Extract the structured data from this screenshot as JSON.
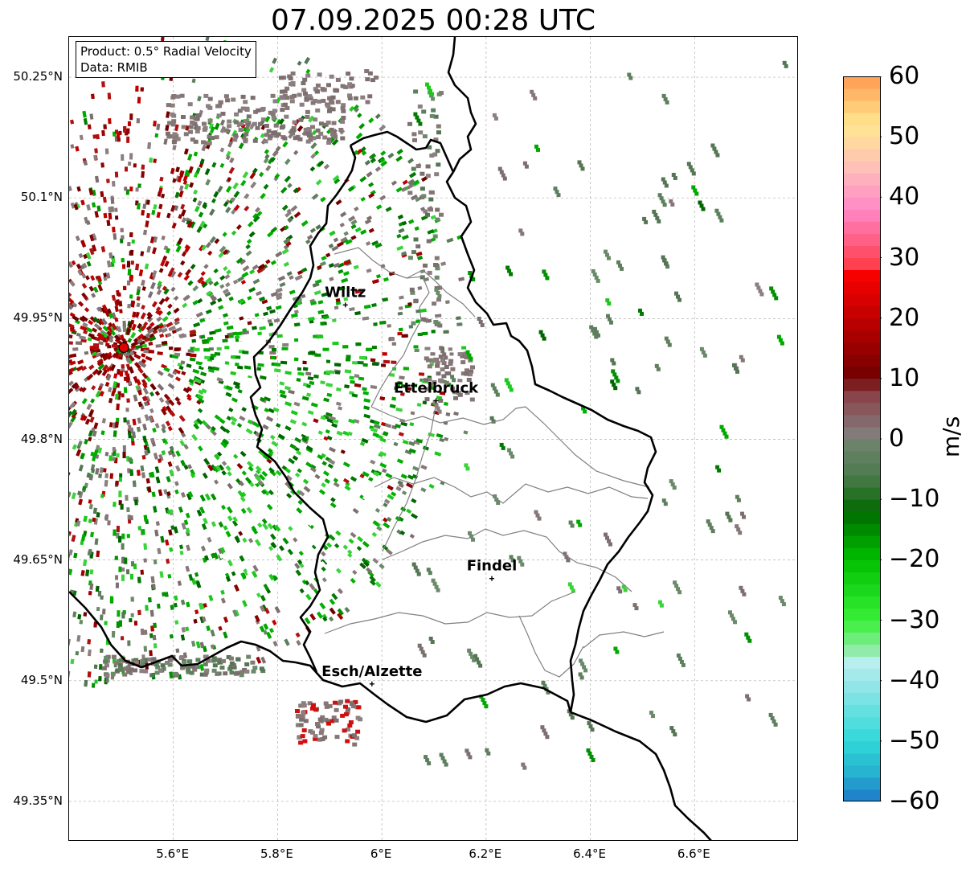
{
  "title": "07.09.2025 00:28 UTC",
  "product_box": {
    "line1": "Product: 0.5° Radial Velocity",
    "line2": "Data: RMIB"
  },
  "latitude_labels": [
    "50.25°N",
    "50.1°N",
    "49.95°N",
    "49.8°N",
    "49.65°N",
    "49.5°N",
    "49.35°N"
  ],
  "longitude_labels": [
    "5.6°E",
    "5.8°E",
    "6°E",
    "6.2°E",
    "6.4°E",
    "6.6°E"
  ],
  "cities": [
    {
      "name": "Wiltz",
      "lon": 5.93,
      "lat": 49.967
    },
    {
      "name": "Ettelbruck",
      "lon": 6.104,
      "lat": 49.848
    },
    {
      "name": "Findel",
      "lon": 6.211,
      "lat": 49.627
    },
    {
      "name": "Esch/Alzette",
      "lon": 5.981,
      "lat": 49.496
    }
  ],
  "radar_site": {
    "lon": 5.505,
    "lat": 49.914,
    "color": "#e00000"
  },
  "map_extent": {
    "lon_min": 5.4,
    "lon_max": 6.8,
    "lat_min": 49.3,
    "lat_max": 50.3
  },
  "colorbar": {
    "unit": "m/s",
    "min": -60,
    "max": 60,
    "ticks": [
      "60",
      "50",
      "40",
      "30",
      "20",
      "10",
      "0",
      "−10",
      "−20",
      "−30",
      "−40",
      "−50",
      "−60"
    ],
    "stops": [
      {
        "v": -60,
        "color": "#1f78c8"
      },
      {
        "v": -55,
        "color": "#26b4d0"
      },
      {
        "v": -50,
        "color": "#2fd8d8"
      },
      {
        "v": -40,
        "color": "#9be8e8"
      },
      {
        "v": -36,
        "color": "#c0f0f0"
      },
      {
        "v": -35,
        "color": "#90eca8"
      },
      {
        "v": -30,
        "color": "#38f038"
      },
      {
        "v": -20,
        "color": "#00c000"
      },
      {
        "v": -12,
        "color": "#006a00"
      },
      {
        "v": -6,
        "color": "#4e7a4e"
      },
      {
        "v": 0,
        "color": "#6f856f"
      },
      {
        "v": 1,
        "color": "#837a7a"
      },
      {
        "v": 8,
        "color": "#8a3c44"
      },
      {
        "v": 10,
        "color": "#700000"
      },
      {
        "v": 20,
        "color": "#c00000"
      },
      {
        "v": 28,
        "color": "#ff0000"
      },
      {
        "v": 29,
        "color": "#ff4050"
      },
      {
        "v": 38,
        "color": "#ff88c8"
      },
      {
        "v": 45,
        "color": "#ffc0b8"
      },
      {
        "v": 52,
        "color": "#ffe890"
      },
      {
        "v": 60,
        "color": "#ff9a50"
      }
    ]
  },
  "colors": {
    "border_country": "#000000",
    "border_canton": "#808080",
    "grid": "#b0b0b0",
    "velocity_inbound": "#008a00",
    "velocity_outbound": "#8b0000",
    "velocity_zero": "#877676",
    "velocity_near_zero_neg": "#5e7f5e"
  }
}
